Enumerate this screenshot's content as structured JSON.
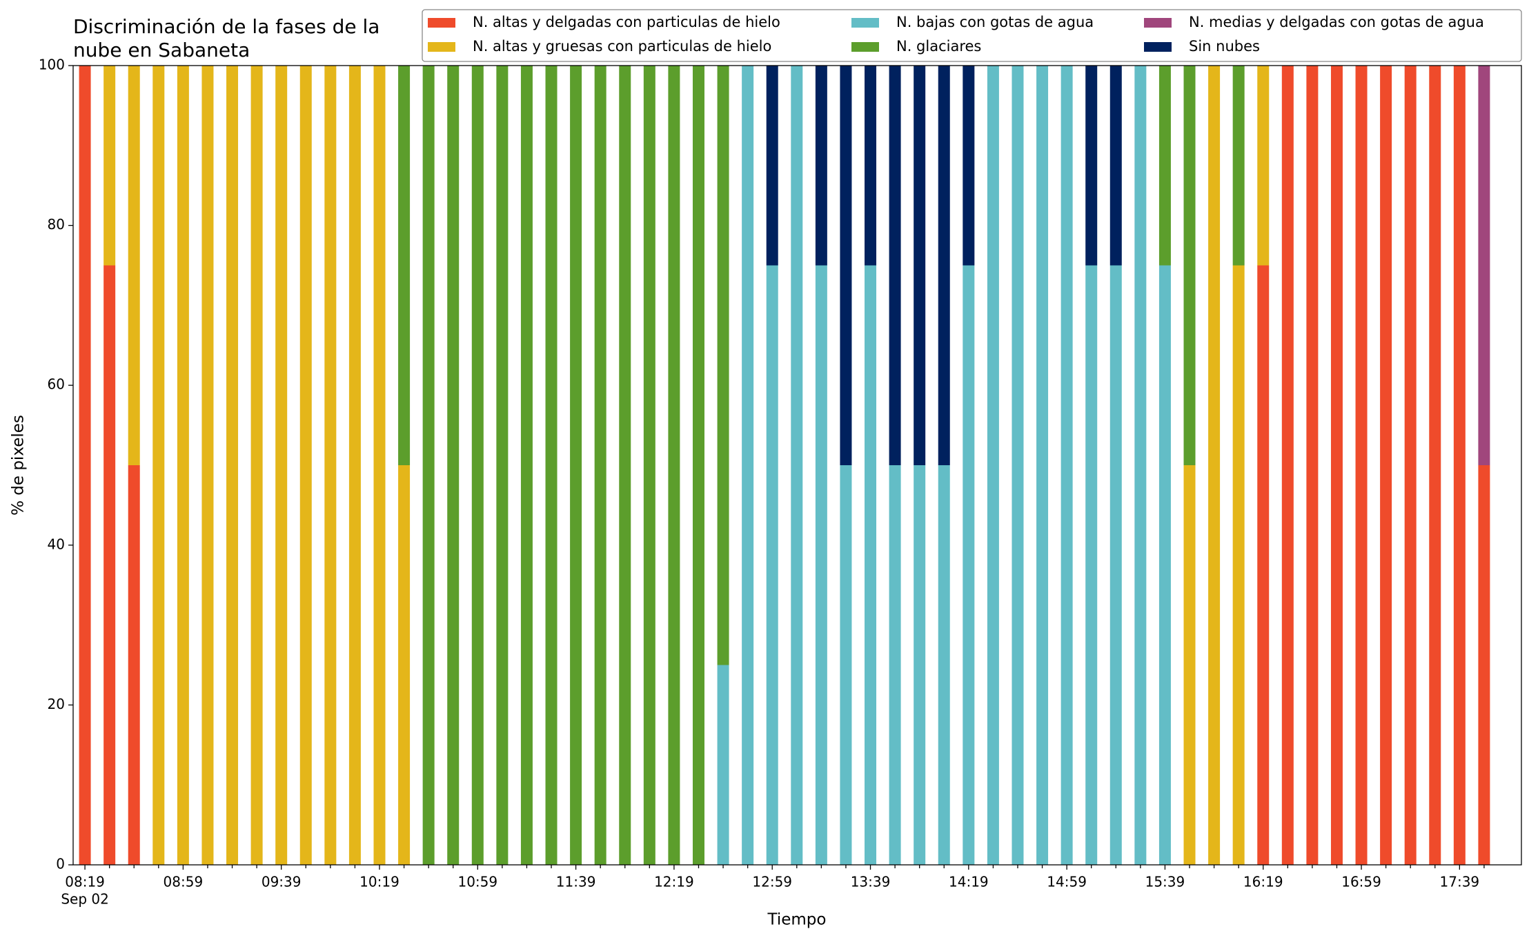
{
  "chart_data": {
    "type": "stacked_bar",
    "title_lines": [
      "Discriminación de la fases de la",
      "nube en Sabaneta"
    ],
    "x_label": "Tiempo",
    "y_label": "% de pixeles",
    "x_date_label": "Sep 02",
    "categories": [
      "08:19",
      null,
      null,
      null,
      "08:59",
      null,
      null,
      null,
      "09:39",
      null,
      null,
      null,
      "10:19",
      null,
      null,
      null,
      "10:59",
      null,
      null,
      null,
      "11:39",
      null,
      null,
      null,
      "12:19",
      null,
      null,
      null,
      "12:59",
      null,
      null,
      null,
      "13:39",
      null,
      null,
      null,
      "14:19",
      null,
      null,
      null,
      "14:59",
      null,
      null,
      null,
      "15:39",
      null,
      null,
      null,
      "16:19",
      null,
      null,
      null,
      "16:59",
      null,
      null,
      null,
      "17:39",
      null
    ],
    "series": [
      {
        "name": "N. altas y delgadas con particulas de hielo",
        "color": "#ef4b2b",
        "values": [
          100,
          75,
          50,
          0,
          0,
          0,
          0,
          0,
          0,
          0,
          0,
          0,
          0,
          0,
          0,
          0,
          0,
          0,
          0,
          0,
          0,
          0,
          0,
          0,
          0,
          0,
          0,
          0,
          0,
          0,
          0,
          0,
          0,
          0,
          0,
          0,
          0,
          0,
          0,
          0,
          0,
          0,
          0,
          0,
          0,
          0,
          0,
          0,
          75,
          100,
          100,
          100,
          100,
          100,
          100,
          100,
          100,
          50
        ]
      },
      {
        "name": "N. altas y gruesas con particulas de hielo",
        "color": "#e4b61a",
        "values": [
          0,
          25,
          50,
          100,
          100,
          100,
          100,
          100,
          100,
          100,
          100,
          100,
          100,
          50,
          0,
          0,
          0,
          0,
          0,
          0,
          0,
          0,
          0,
          0,
          0,
          0,
          0,
          0,
          0,
          0,
          0,
          0,
          0,
          0,
          0,
          0,
          0,
          0,
          0,
          0,
          0,
          0,
          0,
          0,
          0,
          50,
          100,
          75,
          25,
          0,
          0,
          0,
          0,
          0,
          0,
          0,
          0,
          0
        ]
      },
      {
        "name": "N. bajas con gotas de agua",
        "color": "#63bdc6",
        "values": [
          0,
          0,
          0,
          0,
          0,
          0,
          0,
          0,
          0,
          0,
          0,
          0,
          0,
          0,
          0,
          0,
          0,
          0,
          0,
          0,
          0,
          0,
          0,
          0,
          0,
          0,
          25,
          100,
          75,
          100,
          75,
          50,
          75,
          50,
          50,
          50,
          75,
          100,
          100,
          100,
          100,
          75,
          75,
          100,
          75,
          0,
          0,
          0,
          0,
          0,
          0,
          0,
          0,
          0,
          0,
          0,
          0,
          0
        ]
      },
      {
        "name": "N. glaciares",
        "color": "#5c9e2c",
        "values": [
          0,
          0,
          0,
          0,
          0,
          0,
          0,
          0,
          0,
          0,
          0,
          0,
          0,
          50,
          100,
          100,
          100,
          100,
          100,
          100,
          100,
          100,
          100,
          100,
          100,
          100,
          75,
          0,
          0,
          0,
          0,
          0,
          0,
          0,
          0,
          0,
          0,
          0,
          0,
          0,
          0,
          0,
          0,
          0,
          25,
          50,
          0,
          25,
          0,
          0,
          0,
          0,
          0,
          0,
          0,
          0,
          0,
          0
        ]
      },
      {
        "name": "N. medias y delgadas con gotas de agua",
        "color": "#a0467c",
        "values": [
          0,
          0,
          0,
          0,
          0,
          0,
          0,
          0,
          0,
          0,
          0,
          0,
          0,
          0,
          0,
          0,
          0,
          0,
          0,
          0,
          0,
          0,
          0,
          0,
          0,
          0,
          0,
          0,
          0,
          0,
          0,
          0,
          0,
          0,
          0,
          0,
          0,
          0,
          0,
          0,
          0,
          0,
          0,
          0,
          0,
          0,
          0,
          0,
          0,
          0,
          0,
          0,
          0,
          0,
          0,
          0,
          0,
          50
        ]
      },
      {
        "name": "Sin nubes",
        "color": "#00215e",
        "values": [
          0,
          0,
          0,
          0,
          0,
          0,
          0,
          0,
          0,
          0,
          0,
          0,
          0,
          0,
          0,
          0,
          0,
          0,
          0,
          0,
          0,
          0,
          0,
          0,
          0,
          0,
          0,
          0,
          25,
          0,
          25,
          50,
          25,
          50,
          50,
          50,
          25,
          0,
          0,
          0,
          0,
          25,
          25,
          0,
          0,
          0,
          0,
          0,
          0,
          0,
          0,
          0,
          0,
          0,
          0,
          0,
          0,
          0
        ]
      }
    ],
    "ylim": [
      0,
      100
    ],
    "yticks": [
      0,
      20,
      40,
      60,
      80,
      100
    ],
    "legend": "upper right",
    "legend_columns": 3
  }
}
